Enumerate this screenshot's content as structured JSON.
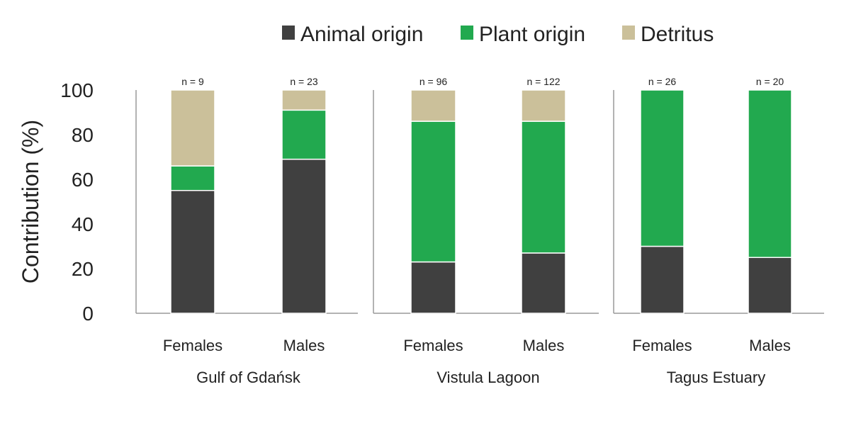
{
  "chart_data": {
    "type": "bar",
    "stacked": true,
    "ylabel": "Contribution (%)",
    "ylim": [
      0,
      100
    ],
    "yticks": [
      "0",
      "20",
      "40",
      "60",
      "80",
      "100"
    ],
    "legend": {
      "position": "top",
      "items": [
        {
          "label": "Animal origin",
          "color": "#404040"
        },
        {
          "label": "Plant origin",
          "color": "#22a94f"
        },
        {
          "label": "Detritus",
          "color": "#cbc09a"
        }
      ]
    },
    "groups": [
      {
        "label": "Gulf of Gdańsk",
        "bars": [
          {
            "category": "Females",
            "n_label": "n = 9",
            "values": [
              55,
              11,
              34
            ]
          },
          {
            "category": "Males",
            "n_label": "n = 23",
            "values": [
              69,
              22,
              9
            ]
          }
        ]
      },
      {
        "label": "Vistula Lagoon",
        "bars": [
          {
            "category": "Females",
            "n_label": "n = 96",
            "values": [
              23,
              63,
              14
            ]
          },
          {
            "category": "Males",
            "n_label": "n = 122",
            "values": [
              27,
              59,
              14
            ]
          }
        ]
      },
      {
        "label": "Tagus Estuary",
        "bars": [
          {
            "category": "Females",
            "n_label": "n = 26",
            "values": [
              30,
              70,
              0
            ]
          },
          {
            "category": "Males",
            "n_label": "n = 20",
            "values": [
              25,
              75,
              0
            ]
          }
        ]
      }
    ],
    "grid": false
  }
}
